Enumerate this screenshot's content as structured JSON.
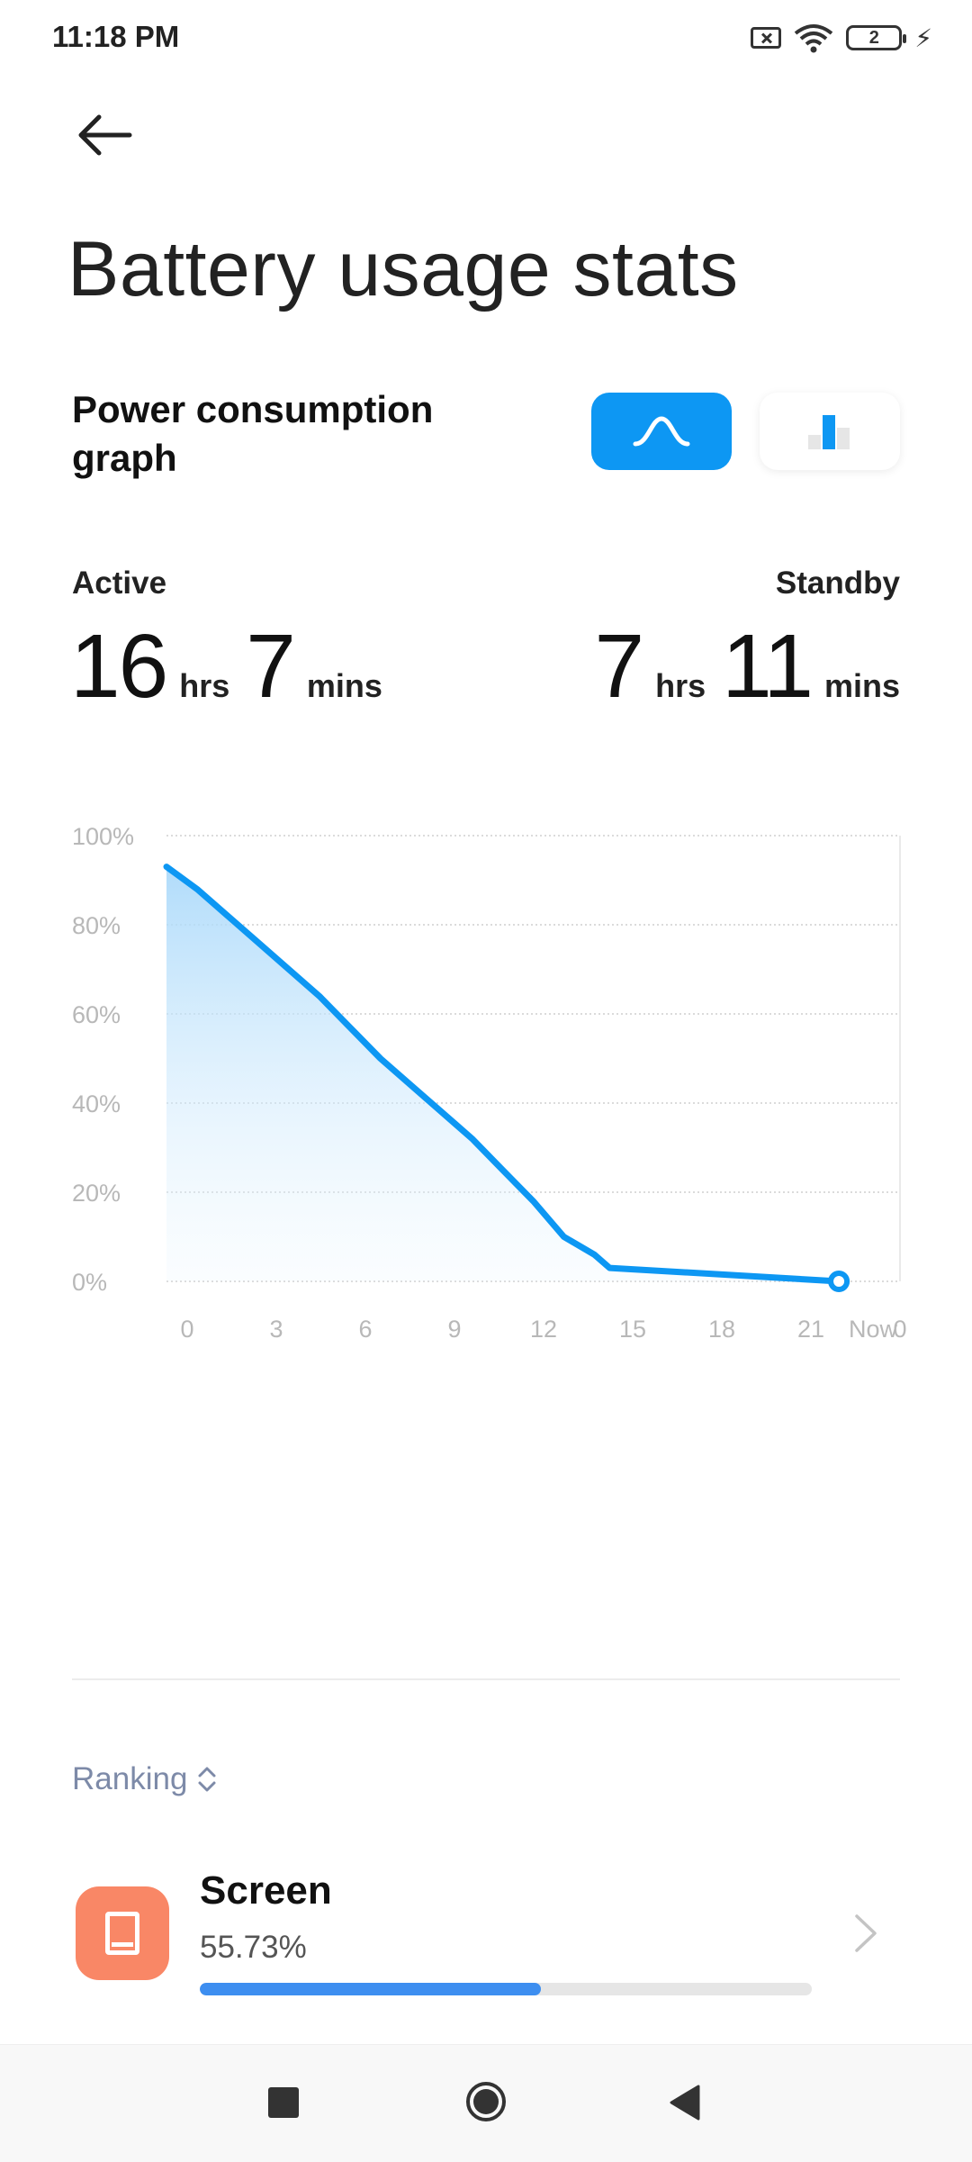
{
  "status_bar": {
    "time": "11:18 PM",
    "battery_level": "2"
  },
  "header": {
    "title": "Battery usage stats"
  },
  "graph_section": {
    "title": "Power consumption graph"
  },
  "usage": {
    "active_label": "Active",
    "active_hrs": "16",
    "active_mins": "7",
    "standby_label": "Standby",
    "standby_hrs": "7",
    "standby_mins": "11",
    "hrs_unit": "hrs",
    "mins_unit": "mins"
  },
  "chart_data": {
    "type": "area",
    "y_ticks": [
      "100%",
      "80%",
      "60%",
      "40%",
      "20%",
      "0%"
    ],
    "x_ticks": [
      "0",
      "3",
      "6",
      "9",
      "12",
      "15",
      "18",
      "21",
      "Now",
      "0"
    ],
    "ylim": [
      0,
      100
    ],
    "series": [
      {
        "values": [
          [
            0,
            93
          ],
          [
            1,
            88
          ],
          [
            3,
            76
          ],
          [
            5,
            64
          ],
          [
            6,
            57
          ],
          [
            7,
            50
          ],
          [
            8,
            44
          ],
          [
            10,
            32
          ],
          [
            11,
            25
          ],
          [
            12,
            18
          ],
          [
            13,
            10
          ],
          [
            14,
            6
          ],
          [
            14.5,
            3
          ],
          [
            22,
            0
          ]
        ]
      }
    ],
    "colors": {
      "line": "#0d97f3",
      "fill_top": "#a8d8fa"
    }
  },
  "ranking": {
    "label": "Ranking"
  },
  "apps": [
    {
      "name": "Screen",
      "percent": "55.73%",
      "fraction": 0.5573
    }
  ]
}
